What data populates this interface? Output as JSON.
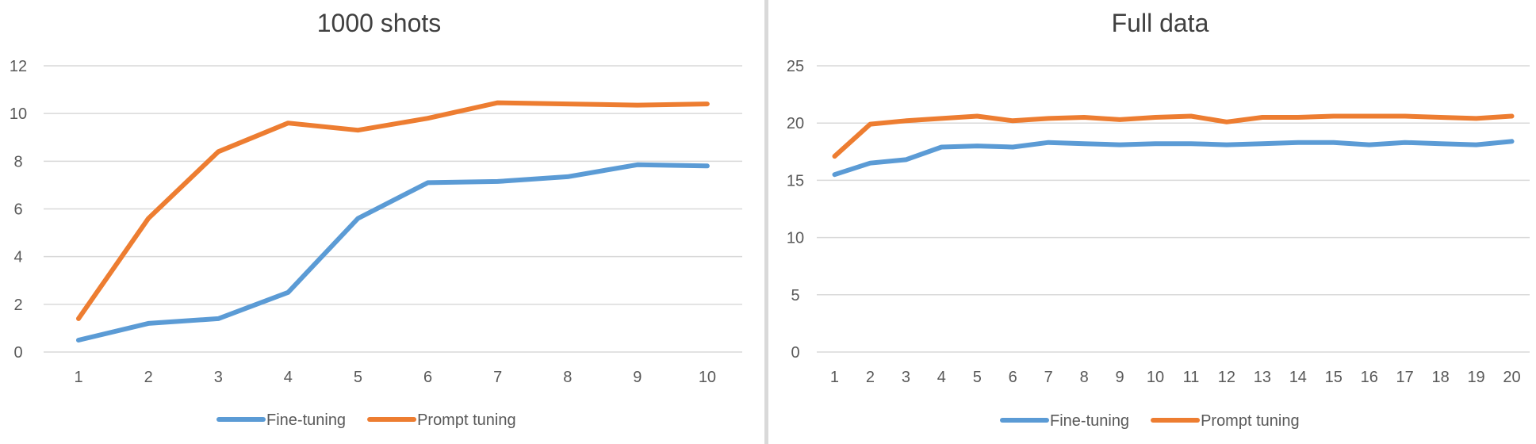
{
  "colors": {
    "fine_tuning": "#5b9bd5",
    "prompt_tuning": "#ed7d31",
    "grid": "#d9d9d9",
    "divider": "#d9d9d9",
    "text": "#595959",
    "title": "#404040"
  },
  "chart_data": [
    {
      "type": "line",
      "title": "1000 shots",
      "xlabel": "",
      "ylabel": "",
      "x": [
        1,
        2,
        3,
        4,
        5,
        6,
        7,
        8,
        9,
        10
      ],
      "ylim": [
        0,
        12
      ],
      "yticks": [
        0,
        2,
        4,
        6,
        8,
        10,
        12
      ],
      "grid": true,
      "legend_position": "bottom",
      "series": [
        {
          "name": "Fine-tuning",
          "color_key": "fine_tuning",
          "values": [
            0.5,
            1.2,
            1.4,
            2.5,
            5.6,
            7.1,
            7.15,
            7.35,
            7.85,
            7.8
          ]
        },
        {
          "name": "Prompt tuning",
          "color_key": "prompt_tuning",
          "values": [
            1.4,
            5.6,
            8.4,
            9.6,
            9.3,
            9.8,
            10.45,
            10.4,
            10.35,
            10.4
          ]
        }
      ]
    },
    {
      "type": "line",
      "title": "Full data",
      "xlabel": "",
      "ylabel": "",
      "x": [
        1,
        2,
        3,
        4,
        5,
        6,
        7,
        8,
        9,
        10,
        11,
        12,
        13,
        14,
        15,
        16,
        17,
        18,
        19,
        20
      ],
      "ylim": [
        0,
        25
      ],
      "yticks": [
        0,
        5,
        10,
        15,
        20,
        25
      ],
      "grid": true,
      "legend_position": "bottom",
      "series": [
        {
          "name": "Fine-tuning",
          "color_key": "fine_tuning",
          "values": [
            15.5,
            16.5,
            16.8,
            17.9,
            18.0,
            17.9,
            18.3,
            18.2,
            18.1,
            18.2,
            18.2,
            18.1,
            18.2,
            18.3,
            18.3,
            18.1,
            18.3,
            18.2,
            18.1,
            18.4
          ]
        },
        {
          "name": "Prompt tuning",
          "color_key": "prompt_tuning",
          "values": [
            17.1,
            19.9,
            20.2,
            20.4,
            20.6,
            20.2,
            20.4,
            20.5,
            20.3,
            20.5,
            20.6,
            20.1,
            20.5,
            20.5,
            20.6,
            20.6,
            20.6,
            20.5,
            20.4,
            20.6
          ]
        }
      ]
    }
  ]
}
